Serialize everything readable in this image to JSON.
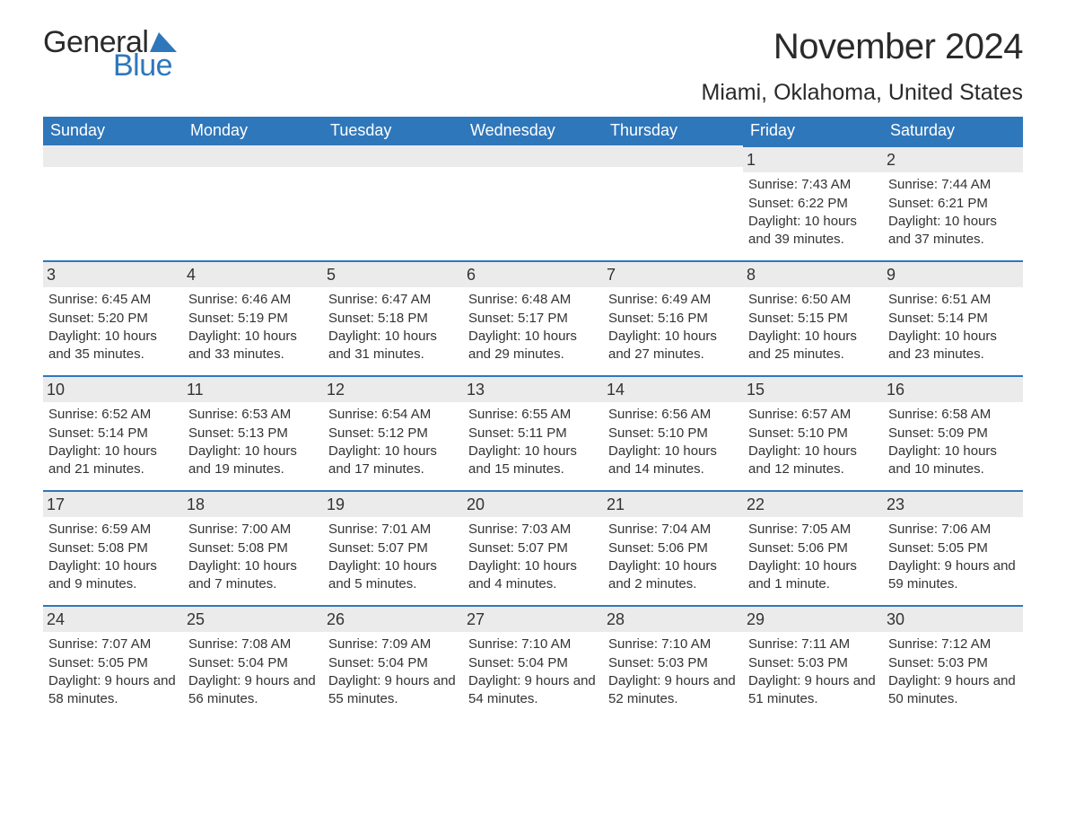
{
  "brand": {
    "word1": "General",
    "word2": "Blue",
    "logo_color": "#2f77bb"
  },
  "title": "November 2024",
  "location": "Miami, Oklahoma, United States",
  "colors": {
    "header_bg": "#2f77bb",
    "header_text": "#ffffff",
    "daybar_bg": "#ebebeb",
    "daybar_border": "#2f77bb",
    "body_text": "#333333",
    "page_bg": "#ffffff"
  },
  "typography": {
    "title_fontsize": 40,
    "location_fontsize": 25,
    "weekday_fontsize": 18,
    "daynum_fontsize": 18,
    "body_fontsize": 15
  },
  "layout": {
    "columns": 7,
    "rows": 5,
    "first_weekday_index": 5
  },
  "weekdays": [
    "Sunday",
    "Monday",
    "Tuesday",
    "Wednesday",
    "Thursday",
    "Friday",
    "Saturday"
  ],
  "days": [
    {
      "n": 1,
      "sunrise": "7:43 AM",
      "sunset": "6:22 PM",
      "daylight": "10 hours and 39 minutes."
    },
    {
      "n": 2,
      "sunrise": "7:44 AM",
      "sunset": "6:21 PM",
      "daylight": "10 hours and 37 minutes."
    },
    {
      "n": 3,
      "sunrise": "6:45 AM",
      "sunset": "5:20 PM",
      "daylight": "10 hours and 35 minutes."
    },
    {
      "n": 4,
      "sunrise": "6:46 AM",
      "sunset": "5:19 PM",
      "daylight": "10 hours and 33 minutes."
    },
    {
      "n": 5,
      "sunrise": "6:47 AM",
      "sunset": "5:18 PM",
      "daylight": "10 hours and 31 minutes."
    },
    {
      "n": 6,
      "sunrise": "6:48 AM",
      "sunset": "5:17 PM",
      "daylight": "10 hours and 29 minutes."
    },
    {
      "n": 7,
      "sunrise": "6:49 AM",
      "sunset": "5:16 PM",
      "daylight": "10 hours and 27 minutes."
    },
    {
      "n": 8,
      "sunrise": "6:50 AM",
      "sunset": "5:15 PM",
      "daylight": "10 hours and 25 minutes."
    },
    {
      "n": 9,
      "sunrise": "6:51 AM",
      "sunset": "5:14 PM",
      "daylight": "10 hours and 23 minutes."
    },
    {
      "n": 10,
      "sunrise": "6:52 AM",
      "sunset": "5:14 PM",
      "daylight": "10 hours and 21 minutes."
    },
    {
      "n": 11,
      "sunrise": "6:53 AM",
      "sunset": "5:13 PM",
      "daylight": "10 hours and 19 minutes."
    },
    {
      "n": 12,
      "sunrise": "6:54 AM",
      "sunset": "5:12 PM",
      "daylight": "10 hours and 17 minutes."
    },
    {
      "n": 13,
      "sunrise": "6:55 AM",
      "sunset": "5:11 PM",
      "daylight": "10 hours and 15 minutes."
    },
    {
      "n": 14,
      "sunrise": "6:56 AM",
      "sunset": "5:10 PM",
      "daylight": "10 hours and 14 minutes."
    },
    {
      "n": 15,
      "sunrise": "6:57 AM",
      "sunset": "5:10 PM",
      "daylight": "10 hours and 12 minutes."
    },
    {
      "n": 16,
      "sunrise": "6:58 AM",
      "sunset": "5:09 PM",
      "daylight": "10 hours and 10 minutes."
    },
    {
      "n": 17,
      "sunrise": "6:59 AM",
      "sunset": "5:08 PM",
      "daylight": "10 hours and 9 minutes."
    },
    {
      "n": 18,
      "sunrise": "7:00 AM",
      "sunset": "5:08 PM",
      "daylight": "10 hours and 7 minutes."
    },
    {
      "n": 19,
      "sunrise": "7:01 AM",
      "sunset": "5:07 PM",
      "daylight": "10 hours and 5 minutes."
    },
    {
      "n": 20,
      "sunrise": "7:03 AM",
      "sunset": "5:07 PM",
      "daylight": "10 hours and 4 minutes."
    },
    {
      "n": 21,
      "sunrise": "7:04 AM",
      "sunset": "5:06 PM",
      "daylight": "10 hours and 2 minutes."
    },
    {
      "n": 22,
      "sunrise": "7:05 AM",
      "sunset": "5:06 PM",
      "daylight": "10 hours and 1 minute."
    },
    {
      "n": 23,
      "sunrise": "7:06 AM",
      "sunset": "5:05 PM",
      "daylight": "9 hours and 59 minutes."
    },
    {
      "n": 24,
      "sunrise": "7:07 AM",
      "sunset": "5:05 PM",
      "daylight": "9 hours and 58 minutes."
    },
    {
      "n": 25,
      "sunrise": "7:08 AM",
      "sunset": "5:04 PM",
      "daylight": "9 hours and 56 minutes."
    },
    {
      "n": 26,
      "sunrise": "7:09 AM",
      "sunset": "5:04 PM",
      "daylight": "9 hours and 55 minutes."
    },
    {
      "n": 27,
      "sunrise": "7:10 AM",
      "sunset": "5:04 PM",
      "daylight": "9 hours and 54 minutes."
    },
    {
      "n": 28,
      "sunrise": "7:10 AM",
      "sunset": "5:03 PM",
      "daylight": "9 hours and 52 minutes."
    },
    {
      "n": 29,
      "sunrise": "7:11 AM",
      "sunset": "5:03 PM",
      "daylight": "9 hours and 51 minutes."
    },
    {
      "n": 30,
      "sunrise": "7:12 AM",
      "sunset": "5:03 PM",
      "daylight": "9 hours and 50 minutes."
    }
  ],
  "labels": {
    "sunrise": "Sunrise:",
    "sunset": "Sunset:",
    "daylight": "Daylight:"
  }
}
